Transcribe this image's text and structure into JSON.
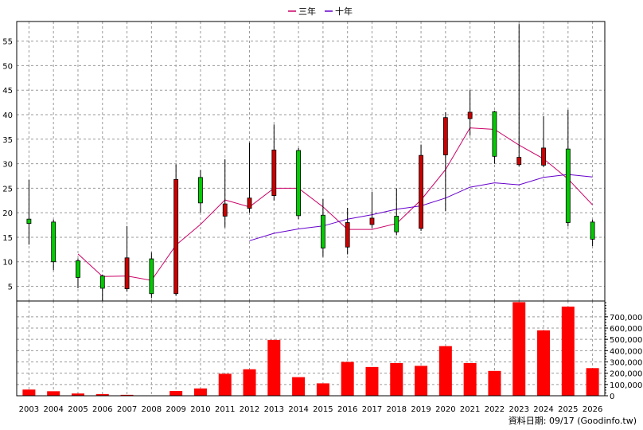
{
  "chart_data": {
    "type": "candlestick+line+bar",
    "title": "",
    "source_label": "資料日期: 09/17 (Goodinfo.tw)",
    "categories": [
      "2003",
      "2004",
      "2005",
      "2006",
      "2007",
      "2008",
      "2009",
      "2010",
      "2011",
      "2012",
      "2013",
      "2014",
      "2015",
      "2016",
      "2017",
      "2018",
      "2019",
      "2020",
      "2021",
      "2022",
      "2023",
      "2024",
      "2025",
      "2026"
    ],
    "price_axis": {
      "ylim": [
        2,
        59
      ],
      "ticks": [
        5,
        10,
        15,
        20,
        25,
        30,
        35,
        40,
        45,
        50,
        55
      ]
    },
    "volume_axis": {
      "ylim": [
        0,
        840000
      ],
      "ticks": [
        0,
        100000,
        200000,
        300000,
        400000,
        500000,
        600000,
        700000
      ],
      "tick_labels": [
        "0",
        "100,000",
        "200,000",
        "300,000",
        "400,000",
        "500,000",
        "600,000",
        "700,000"
      ]
    },
    "candles": [
      {
        "open": 18.7,
        "close": 17.8,
        "high": 26.7,
        "low": 13.5
      },
      {
        "open": 18.1,
        "close": 10.0,
        "high": 18.6,
        "low": 8.3
      },
      {
        "open": 10.2,
        "close": 6.8,
        "high": 10.7,
        "low": 4.6
      },
      {
        "open": 7.1,
        "close": 4.6,
        "high": 7.4,
        "low": 2.1
      },
      {
        "open": 4.5,
        "close": 10.8,
        "high": 17.3,
        "low": 3.9
      },
      {
        "open": 10.6,
        "close": 3.5,
        "high": 11.9,
        "low": 2.6
      },
      {
        "open": 3.5,
        "close": 26.8,
        "high": 29.9,
        "low": 3.1
      },
      {
        "open": 27.2,
        "close": 22.0,
        "high": 28.7,
        "low": 20.0
      },
      {
        "open": 19.3,
        "close": 21.8,
        "high": 30.9,
        "low": 17.0
      },
      {
        "open": 20.9,
        "close": 23.0,
        "high": 34.3,
        "low": 20.0
      },
      {
        "open": 23.5,
        "close": 32.8,
        "high": 38.0,
        "low": 22.5
      },
      {
        "open": 32.7,
        "close": 19.4,
        "high": 33.2,
        "low": 18.7
      },
      {
        "open": 19.5,
        "close": 12.8,
        "high": 22.8,
        "low": 11.0
      },
      {
        "open": 13.0,
        "close": 18.0,
        "high": 21.0,
        "low": 11.5
      },
      {
        "open": 17.6,
        "close": 18.9,
        "high": 24.3,
        "low": 16.9
      },
      {
        "open": 19.3,
        "close": 16.1,
        "high": 25.0,
        "low": 15.4
      },
      {
        "open": 16.8,
        "close": 31.7,
        "high": 33.9,
        "low": 16.3
      },
      {
        "open": 31.8,
        "close": 39.4,
        "high": 40.5,
        "low": 20.3
      },
      {
        "open": 39.2,
        "close": 40.5,
        "high": 45.0,
        "low": 35.7
      },
      {
        "open": 40.6,
        "close": 31.5,
        "high": 40.8,
        "low": 30.0
      },
      {
        "open": 29.8,
        "close": 31.3,
        "high": 58.5,
        "low": 29.5
      },
      {
        "open": 29.7,
        "close": 33.2,
        "high": 39.7,
        "low": 29.3
      },
      {
        "open": 33.0,
        "close": 18.0,
        "high": 41.0,
        "low": 17.2
      },
      {
        "open": 18.1,
        "close": 14.6,
        "high": 18.6,
        "low": 13.2
      }
    ],
    "series": [
      {
        "name": "三年",
        "color": "#cc0066",
        "values": [
          null,
          null,
          11.6,
          7.0,
          7.1,
          6.2,
          13.4,
          17.6,
          22.6,
          21.2,
          25.0,
          25.0,
          21.2,
          16.6,
          16.6,
          17.8,
          22.6,
          28.8,
          37.3,
          37.0,
          33.8,
          31.0,
          26.9,
          21.6
        ]
      },
      {
        "name": "十年",
        "color": "#6600cc",
        "values": [
          null,
          null,
          null,
          null,
          null,
          null,
          null,
          null,
          null,
          14.3,
          15.8,
          16.7,
          17.3,
          18.7,
          19.6,
          20.7,
          21.4,
          23.0,
          25.2,
          26.1,
          25.7,
          27.2,
          27.8,
          27.3
        ]
      }
    ],
    "volume": [
      55000,
      40000,
      20000,
      15000,
      8000,
      3000,
      42000,
      65000,
      195000,
      235000,
      495000,
      165000,
      110000,
      300000,
      255000,
      290000,
      265000,
      440000,
      290000,
      220000,
      830000,
      580000,
      790000,
      245000
    ],
    "colors": {
      "up": "#cc0000",
      "down": "#00cc00",
      "volume": "#ff0000",
      "grid": "#9a9a9a"
    },
    "grid": true,
    "legend": "top-center"
  }
}
